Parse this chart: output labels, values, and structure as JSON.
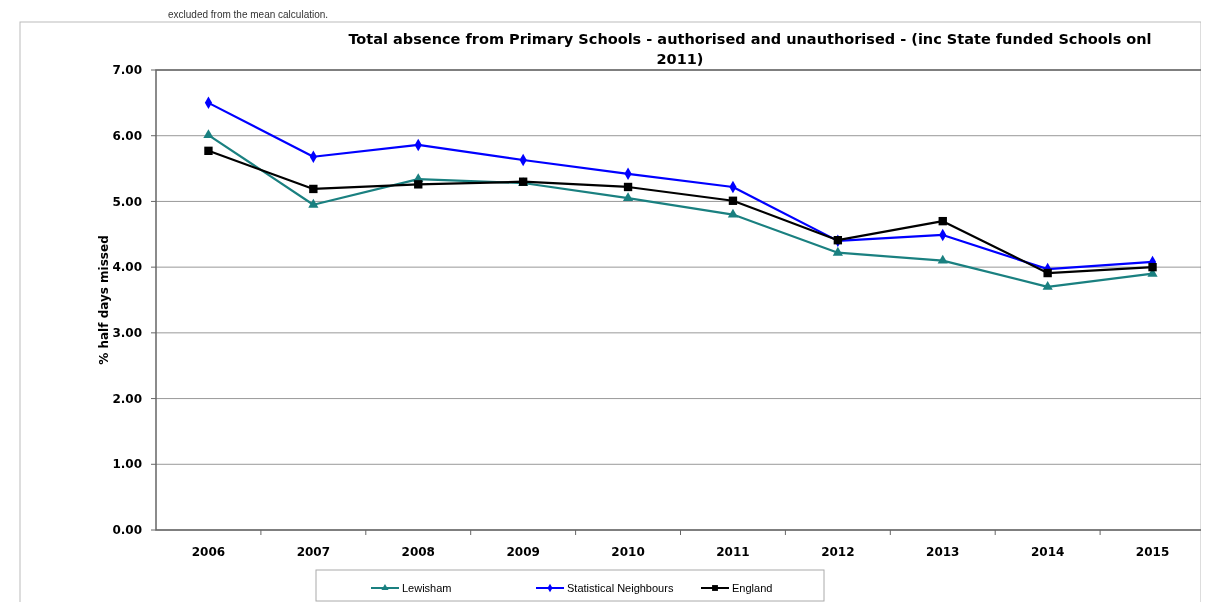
{
  "chart_data": {
    "type": "line",
    "title": "Total absence from Primary Schools - authorised and unauthorised - (inc State funded Schools onl\n2011)",
    "ylabel": "% half days missed",
    "annotations": [
      "excluded from the mean calculation."
    ],
    "categories": [
      "2006",
      "2007",
      "2008",
      "2009",
      "2010",
      "2011",
      "2012",
      "2013",
      "2014",
      "2015"
    ],
    "series": [
      {
        "name": "Lewisham",
        "color": "#1a8080",
        "marker": "triangle",
        "values": [
          6.01,
          4.95,
          5.34,
          5.28,
          5.05,
          4.8,
          4.22,
          4.1,
          3.7,
          3.9
        ]
      },
      {
        "name": "Statistical Neighbours",
        "color": "#0000ff",
        "marker": "diamond",
        "values": [
          6.5,
          5.68,
          5.86,
          5.63,
          5.42,
          5.22,
          4.4,
          4.49,
          3.97,
          4.08
        ]
      },
      {
        "name": "England",
        "color": "#000000",
        "marker": "square",
        "values": [
          5.77,
          5.19,
          5.26,
          5.3,
          5.22,
          5.01,
          4.41,
          4.7,
          3.91,
          4.0
        ]
      }
    ],
    "ylim": [
      0,
      7
    ],
    "yticks": [
      {
        "value": 0,
        "label": "0.00"
      },
      {
        "value": 1,
        "label": "1.00"
      },
      {
        "value": 2,
        "label": "2.00"
      },
      {
        "value": 3,
        "label": "3.00"
      },
      {
        "value": 4,
        "label": "4.00"
      },
      {
        "value": 5,
        "label": "5.00"
      },
      {
        "value": 6,
        "label": "6.00"
      },
      {
        "value": 7,
        "label": "7.00"
      }
    ],
    "grid": "y",
    "legend": "bottom",
    "line_style": "solid"
  }
}
